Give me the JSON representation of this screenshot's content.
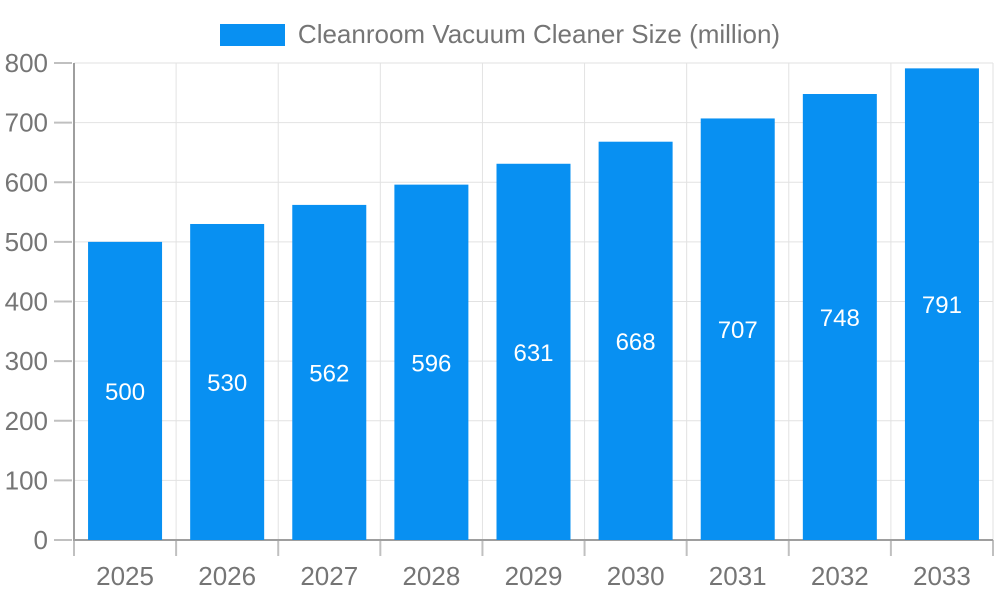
{
  "legend": {
    "label": "Cleanroom Vacuum Cleaner Size (million)"
  },
  "colors": {
    "accent": "#0890f2",
    "text_muted": "#757575",
    "grid": "#e2e2e2",
    "axis": "#9e9e9e",
    "tick": "#c0c0c0",
    "bar_label": "#ffffff"
  },
  "chart_data": {
    "type": "bar",
    "title": "Cleanroom Vacuum Cleaner Size (million)",
    "series_name": "Cleanroom Vacuum Cleaner Size (million)",
    "categories": [
      "2025",
      "2026",
      "2027",
      "2028",
      "2029",
      "2030",
      "2031",
      "2032",
      "2033"
    ],
    "values": [
      500,
      530,
      562,
      596,
      631,
      668,
      707,
      748,
      791
    ],
    "xlabel": "",
    "ylabel": "",
    "ylim": [
      0,
      800
    ],
    "ytick_step": 100,
    "grid": true,
    "legend_position": "top",
    "bar_value_labels": "inside-middle"
  }
}
